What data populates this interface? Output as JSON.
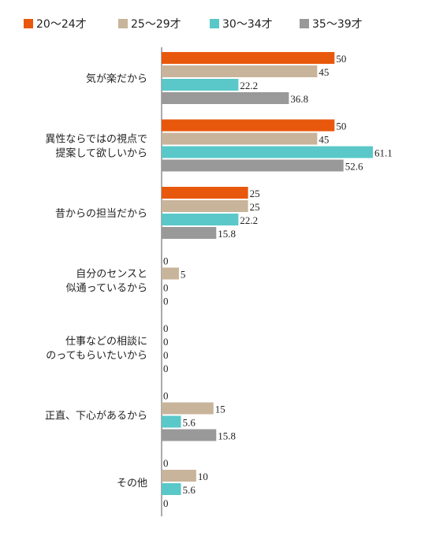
{
  "chart_data": {
    "type": "bar",
    "orientation": "horizontal",
    "legend_position": "top",
    "grid": false,
    "xlim": [
      0,
      100
    ],
    "categories": [
      [
        "気が楽だから"
      ],
      [
        "異性ならではの視点で",
        "提案して欲しいから"
      ],
      [
        "昔からの担当だから"
      ],
      [
        "自分のセンスと",
        "似通っているから"
      ],
      [
        "仕事などの相談に",
        "のってもらいたいから"
      ],
      [
        "正直、下心があるから"
      ],
      [
        "その他"
      ]
    ],
    "series": [
      {
        "name": "20〜24才",
        "color": "#e8580c",
        "values": [
          50,
          50,
          25,
          0,
          0,
          0,
          0
        ]
      },
      {
        "name": "25〜29才",
        "color": "#c8b49a",
        "values": [
          45,
          45,
          25,
          5,
          0,
          15,
          10
        ]
      },
      {
        "name": "30〜34才",
        "color": "#5ac8c8",
        "values": [
          22.2,
          61.1,
          22.2,
          0,
          0,
          5.6,
          5.6
        ]
      },
      {
        "name": "35〜39才",
        "color": "#999999",
        "values": [
          36.8,
          52.6,
          15.8,
          0,
          0,
          15.8,
          0
        ]
      }
    ],
    "value_labels": [
      [
        "50",
        "50",
        "25",
        "0",
        "0",
        "0",
        "0"
      ],
      [
        "45",
        "45",
        "25",
        "5",
        "0",
        "15",
        "10"
      ],
      [
        "22.2",
        "61.1",
        "22.2",
        "0",
        "0",
        "5.6",
        "5.6"
      ],
      [
        "36.8",
        "52.6",
        "15.8",
        "0",
        "0",
        "15.8",
        "0"
      ]
    ]
  }
}
